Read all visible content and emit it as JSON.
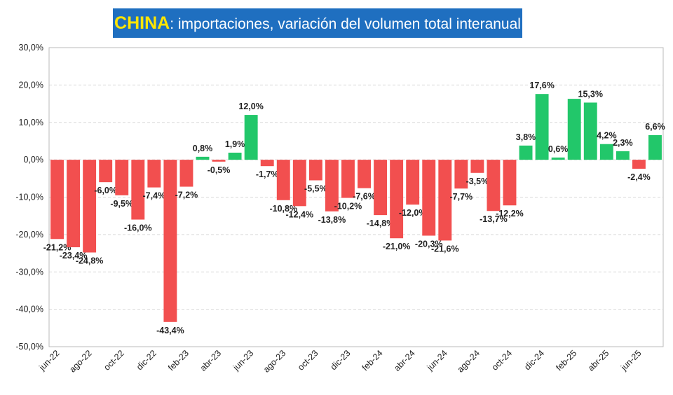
{
  "chart_data": {
    "type": "bar",
    "title": {
      "highlight": "CHINA",
      "text": ": importaciones, variación del volumen total interanual"
    },
    "categories": [
      "jun-22",
      null,
      "ago-22",
      null,
      "oct-22",
      null,
      "dic-22",
      null,
      "feb-23",
      null,
      "abr-23",
      null,
      "jun-23",
      null,
      "ago-23",
      null,
      "oct-23",
      null,
      "dic-23",
      null,
      "feb-24",
      null,
      "abr-24",
      null,
      "jun-24",
      null,
      "ago-24",
      null,
      "oct-24",
      null,
      "dic-24",
      null,
      "feb-25",
      null,
      "abr-25",
      null,
      "jun-25",
      null
    ],
    "values": [
      -21.2,
      -23.4,
      -24.8,
      -6.0,
      -9.5,
      -16.0,
      -7.4,
      -43.4,
      -7.2,
      0.8,
      -0.5,
      1.9,
      12.0,
      -1.7,
      -10.8,
      -12.4,
      -5.5,
      -13.8,
      -10.2,
      -7.6,
      -14.8,
      -21.0,
      -12.0,
      -20.3,
      -21.6,
      -7.7,
      -3.5,
      -13.7,
      -12.2,
      3.8,
      17.6,
      0.6,
      16.3,
      15.3,
      4.2,
      2.3,
      -2.4,
      6.6
    ],
    "value_labels": [
      "-21,2%",
      "-23,4%",
      "-24,8%",
      "-6,0%",
      "-9,5%",
      "-16,0%",
      "-7,4%",
      "-43,4%",
      "-7,2%",
      "0,8%",
      "-0,5%",
      "1,9%",
      "12,0%",
      "-1,7%",
      "-10,8%",
      "-12,4%",
      "-5,5%",
      "-13,8%",
      "-10,2%",
      "-7,6%",
      "-14,8%",
      "-21,0%",
      "-12,0%",
      "-20,3%",
      "-21,6%",
      "-7,7%",
      "-3,5%",
      "-13,7%",
      "-12,2%",
      "3,8%",
      "17,6%",
      "0,6%",
      null,
      "15,3%",
      "4,2%",
      "2,3%",
      "-2,4%",
      "6,6%"
    ],
    "colors": {
      "positive": "#22c76a",
      "negative": "#f24f4f"
    },
    "ylim": [
      -50,
      30
    ],
    "yticks": [
      {
        "value": -50,
        "label": "-50,0%"
      },
      {
        "value": -40,
        "label": "-40,0%"
      },
      {
        "value": -30,
        "label": "-30,0%"
      },
      {
        "value": -20,
        "label": "-20,0%"
      },
      {
        "value": -10,
        "label": "-10,0%"
      },
      {
        "value": 0,
        "label": "0,0%"
      },
      {
        "value": 10,
        "label": "10,0%"
      },
      {
        "value": 20,
        "label": "20,0%"
      },
      {
        "value": 30,
        "label": "30,0%"
      }
    ],
    "grid": true
  }
}
